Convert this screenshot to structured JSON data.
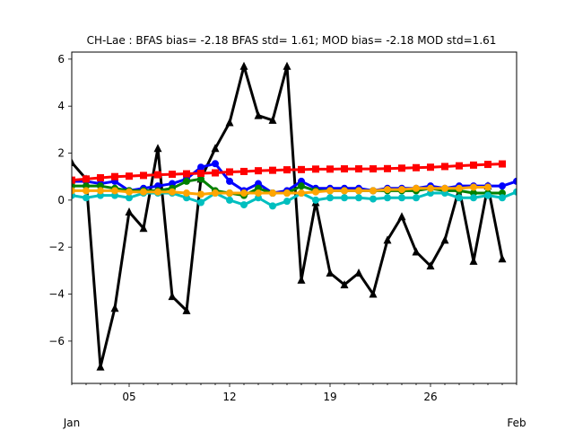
{
  "chart_data": {
    "type": "line",
    "title": "CH-Lae   : BFAS bias= -2.18 BFAS std= 1.61; MOD bias= -2.18 MOD std=1.61",
    "xlabel": "",
    "ylabel": "",
    "xlim": [
      "2017-01-01",
      "2017-02-01"
    ],
    "ylim": [
      -7.8,
      6.3
    ],
    "grid": false,
    "x_ticks": [
      {
        "date": "2017-01-05",
        "label": "05"
      },
      {
        "date": "2017-01-12",
        "label": "12"
      },
      {
        "date": "2017-01-19",
        "label": "19"
      },
      {
        "date": "2017-01-26",
        "label": "26"
      }
    ],
    "x_minor_ticks": [
      "2017-01-01",
      "2017-01-02",
      "2017-01-03",
      "2017-01-04",
      "2017-01-06",
      "2017-01-07",
      "2017-01-08",
      "2017-01-09",
      "2017-01-10",
      "2017-01-11",
      "2017-01-13",
      "2017-01-14",
      "2017-01-15",
      "2017-01-16",
      "2017-01-17",
      "2017-01-18",
      "2017-01-20",
      "2017-01-21",
      "2017-01-22",
      "2017-01-23",
      "2017-01-24",
      "2017-01-25",
      "2017-01-27",
      "2017-01-28",
      "2017-01-29",
      "2017-01-30",
      "2017-01-31",
      "2017-02-01"
    ],
    "x_month_labels": [
      {
        "date": "2017-01-01",
        "label": "Jan"
      },
      {
        "date": "2017-02-01",
        "label": "Feb"
      }
    ],
    "y_ticks": [
      -6,
      -4,
      -2,
      0,
      2,
      4,
      6
    ],
    "y_tick_labels": [
      "−6",
      "−4",
      "−2",
      "0",
      "2",
      "4",
      "6"
    ],
    "series": [
      {
        "color": "#000000",
        "marker": "triangle",
        "linewidth": 3,
        "x": [
          "2017-01-01",
          "2017-01-02",
          "2017-01-03",
          "2017-01-04",
          "2017-01-05",
          "2017-01-06",
          "2017-01-07",
          "2017-01-08",
          "2017-01-09",
          "2017-01-10",
          "2017-01-11",
          "2017-01-12",
          "2017-01-13",
          "2017-01-14",
          "2017-01-15",
          "2017-01-16",
          "2017-01-17",
          "2017-01-18",
          "2017-01-19",
          "2017-01-20",
          "2017-01-21",
          "2017-01-22",
          "2017-01-23",
          "2017-01-24",
          "2017-01-25",
          "2017-01-26",
          "2017-01-27",
          "2017-01-28",
          "2017-01-29",
          "2017-01-30",
          "2017-01-31"
        ],
        "y": [
          1.6,
          0.9,
          -7.1,
          -4.6,
          -0.5,
          -1.2,
          2.2,
          -4.1,
          -4.7,
          0.9,
          2.2,
          3.3,
          5.7,
          3.6,
          3.4,
          5.7,
          -3.4,
          -0.1,
          -3.1,
          -3.6,
          -3.1,
          -4.0,
          -1.7,
          -0.7,
          -2.2,
          -2.8,
          -1.7,
          0.5,
          -2.6,
          0.6,
          -2.5
        ]
      },
      {
        "color": "#0000ff",
        "marker": "circle",
        "linewidth": 3,
        "x": [
          "2017-01-01",
          "2017-01-02",
          "2017-01-03",
          "2017-01-04",
          "2017-01-05",
          "2017-01-06",
          "2017-01-07",
          "2017-01-08",
          "2017-01-09",
          "2017-01-10",
          "2017-01-11",
          "2017-01-12",
          "2017-01-13",
          "2017-01-14",
          "2017-01-15",
          "2017-01-16",
          "2017-01-17",
          "2017-01-18",
          "2017-01-19",
          "2017-01-20",
          "2017-01-21",
          "2017-01-22",
          "2017-01-23",
          "2017-01-24",
          "2017-01-25",
          "2017-01-26",
          "2017-01-27",
          "2017-01-28",
          "2017-01-29",
          "2017-01-30",
          "2017-01-31",
          "2017-02-01"
        ],
        "y": [
          0.8,
          0.8,
          0.7,
          0.8,
          0.4,
          0.5,
          0.6,
          0.7,
          0.9,
          1.4,
          1.55,
          0.8,
          0.4,
          0.7,
          0.3,
          0.4,
          0.8,
          0.5,
          0.5,
          0.5,
          0.5,
          0.4,
          0.5,
          0.5,
          0.5,
          0.6,
          0.5,
          0.6,
          0.6,
          0.6,
          0.6,
          0.8
        ]
      },
      {
        "color": "#008000",
        "marker": "circle",
        "linewidth": 3,
        "x": [
          "2017-01-01",
          "2017-01-02",
          "2017-01-03",
          "2017-01-04",
          "2017-01-05",
          "2017-01-06",
          "2017-01-07",
          "2017-01-08",
          "2017-01-09",
          "2017-01-10",
          "2017-01-11",
          "2017-01-12",
          "2017-01-13",
          "2017-01-14",
          "2017-01-15",
          "2017-01-16",
          "2017-01-17",
          "2017-01-18",
          "2017-01-19",
          "2017-01-20",
          "2017-01-21",
          "2017-01-22",
          "2017-01-23",
          "2017-01-24",
          "2017-01-25",
          "2017-01-26",
          "2017-01-27",
          "2017-01-28",
          "2017-01-29",
          "2017-01-30",
          "2017-01-31"
        ],
        "y": [
          0.6,
          0.6,
          0.6,
          0.5,
          0.4,
          0.4,
          0.4,
          0.5,
          0.8,
          0.9,
          0.4,
          0.3,
          0.2,
          0.5,
          0.3,
          0.3,
          0.6,
          0.4,
          0.4,
          0.4,
          0.4,
          0.4,
          0.4,
          0.4,
          0.4,
          0.5,
          0.4,
          0.4,
          0.3,
          0.3,
          0.3
        ]
      },
      {
        "color": "#ff0000",
        "marker": "square",
        "linewidth": 3,
        "x": [
          "2017-01-01",
          "2017-01-02",
          "2017-01-03",
          "2017-01-04",
          "2017-01-05",
          "2017-01-06",
          "2017-01-07",
          "2017-01-08",
          "2017-01-09",
          "2017-01-10",
          "2017-01-11",
          "2017-01-12",
          "2017-01-13",
          "2017-01-14",
          "2017-01-15",
          "2017-01-16",
          "2017-01-17",
          "2017-01-18",
          "2017-01-19",
          "2017-01-20",
          "2017-01-21",
          "2017-01-22",
          "2017-01-23",
          "2017-01-24",
          "2017-01-25",
          "2017-01-26",
          "2017-01-27",
          "2017-01-28",
          "2017-01-29",
          "2017-01-30",
          "2017-01-31"
        ],
        "y": [
          0.85,
          0.9,
          0.95,
          1.0,
          1.02,
          1.05,
          1.08,
          1.1,
          1.12,
          1.14,
          1.16,
          1.2,
          1.22,
          1.25,
          1.27,
          1.29,
          1.3,
          1.32,
          1.32,
          1.33,
          1.33,
          1.33,
          1.34,
          1.36,
          1.38,
          1.4,
          1.43,
          1.46,
          1.49,
          1.52,
          1.54
        ]
      },
      {
        "color": "#00bfbf",
        "marker": "circle",
        "linewidth": 3,
        "x": [
          "2017-01-01",
          "2017-01-02",
          "2017-01-03",
          "2017-01-04",
          "2017-01-05",
          "2017-01-06",
          "2017-01-07",
          "2017-01-08",
          "2017-01-09",
          "2017-01-10",
          "2017-01-11",
          "2017-01-12",
          "2017-01-13",
          "2017-01-14",
          "2017-01-15",
          "2017-01-16",
          "2017-01-17",
          "2017-01-18",
          "2017-01-19",
          "2017-01-20",
          "2017-01-21",
          "2017-01-22",
          "2017-01-23",
          "2017-01-24",
          "2017-01-25",
          "2017-01-26",
          "2017-01-27",
          "2017-01-28",
          "2017-01-29",
          "2017-01-30",
          "2017-01-31",
          "2017-02-01"
        ],
        "y": [
          0.2,
          0.1,
          0.2,
          0.2,
          0.1,
          0.3,
          0.3,
          0.3,
          0.1,
          -0.1,
          0.3,
          0.0,
          -0.2,
          0.1,
          -0.25,
          -0.05,
          0.3,
          0.0,
          0.1,
          0.1,
          0.1,
          0.05,
          0.1,
          0.1,
          0.1,
          0.3,
          0.3,
          0.1,
          0.1,
          0.2,
          0.1,
          0.35
        ]
      },
      {
        "color": "#ffa500",
        "marker": "circle",
        "linewidth": 3,
        "x": [
          "2017-01-01",
          "2017-01-02",
          "2017-01-03",
          "2017-01-04",
          "2017-01-05",
          "2017-01-06",
          "2017-01-07",
          "2017-01-08",
          "2017-01-09",
          "2017-01-10",
          "2017-01-11",
          "2017-01-12",
          "2017-01-13",
          "2017-01-14",
          "2017-01-15",
          "2017-01-16",
          "2017-01-17",
          "2017-01-18",
          "2017-01-19",
          "2017-01-20",
          "2017-01-21",
          "2017-01-22",
          "2017-01-23",
          "2017-01-24",
          "2017-01-25",
          "2017-01-26",
          "2017-01-27",
          "2017-01-28",
          "2017-01-29",
          "2017-01-30"
        ],
        "y": [
          0.4,
          0.4,
          0.4,
          0.4,
          0.35,
          0.35,
          0.35,
          0.35,
          0.3,
          0.25,
          0.3,
          0.3,
          0.3,
          0.3,
          0.3,
          0.3,
          0.3,
          0.35,
          0.4,
          0.4,
          0.4,
          0.4,
          0.45,
          0.45,
          0.5,
          0.5,
          0.5,
          0.5,
          0.55,
          0.55
        ]
      }
    ]
  }
}
